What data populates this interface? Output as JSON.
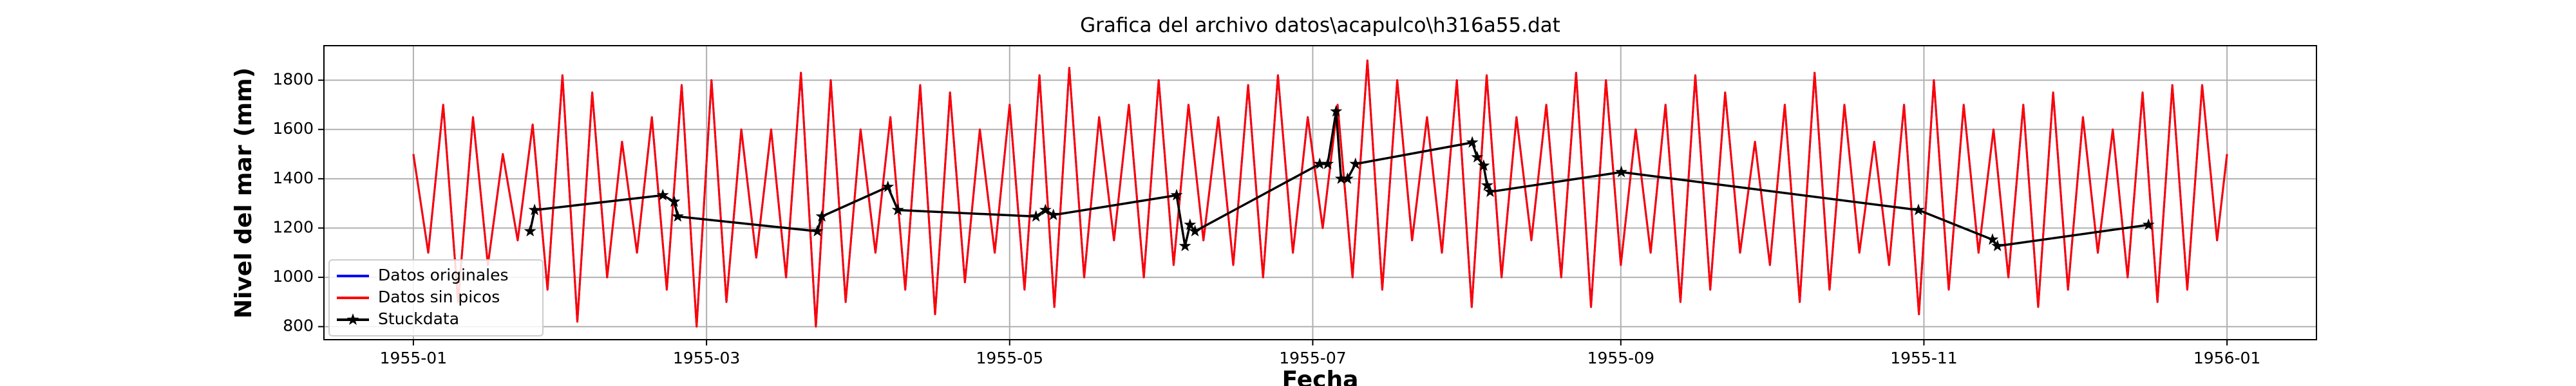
{
  "chart_data": {
    "type": "line",
    "title": "Grafica del archivo datos\\acapulco\\h316a55.dat",
    "xlabel": "Fecha",
    "ylabel": "Nivel del mar (mm)",
    "xlim": [
      -18,
      383
    ],
    "xticks": [
      {
        "value": 0,
        "label": "1955-01"
      },
      {
        "value": 59,
        "label": "1955-03"
      },
      {
        "value": 120,
        "label": "1955-05"
      },
      {
        "value": 181,
        "label": "1955-07"
      },
      {
        "value": 243,
        "label": "1955-09"
      },
      {
        "value": 304,
        "label": "1955-11"
      },
      {
        "value": 365,
        "label": "1956-01"
      }
    ],
    "ylim": [
      747,
      1940
    ],
    "yticks": [
      800,
      1000,
      1200,
      1400,
      1600,
      1800
    ],
    "grid": true,
    "legend": "lower left",
    "x": [
      0,
      3,
      6,
      9,
      12,
      15,
      18,
      21,
      24,
      27,
      30,
      33,
      36,
      39,
      42,
      45,
      48,
      51,
      54,
      57,
      60,
      63,
      66,
      69,
      72,
      75,
      78,
      81,
      84,
      87,
      90,
      93,
      96,
      99,
      102,
      105,
      108,
      111,
      114,
      117,
      120,
      123,
      126,
      129,
      132,
      135,
      138,
      141,
      144,
      147,
      150,
      153,
      156,
      159,
      162,
      165,
      168,
      171,
      174,
      177,
      180,
      183,
      186,
      189,
      192,
      195,
      198,
      201,
      204,
      207,
      210,
      213,
      216,
      219,
      222,
      225,
      228,
      231,
      234,
      237,
      240,
      243,
      246,
      249,
      252,
      255,
      258,
      261,
      264,
      267,
      270,
      273,
      276,
      279,
      282,
      285,
      288,
      291,
      294,
      297,
      300,
      303,
      306,
      309,
      312,
      315,
      318,
      321,
      324,
      327,
      330,
      333,
      336,
      339,
      342,
      345,
      348,
      351,
      354,
      357,
      360,
      363,
      365
    ],
    "series": [
      {
        "name": "Datos originales",
        "color": "#0000ff",
        "values": [
          1500,
          1100,
          1700,
          900,
          1650,
          1050,
          1500,
          1150,
          1620,
          950,
          1820,
          820,
          1750,
          1000,
          1550,
          1100,
          1650,
          950,
          1780,
          800,
          1800,
          900,
          1600,
          1080,
          1600,
          1000,
          1830,
          800,
          1800,
          900,
          1600,
          1100,
          1650,
          950,
          1780,
          850,
          1750,
          980,
          1600,
          1100,
          1700,
          950,
          1820,
          880,
          1850,
          1000,
          1650,
          1150,
          1700,
          1000,
          1800,
          1050,
          1700,
          1150,
          1650,
          1050,
          1780,
          1000,
          1820,
          1100,
          1650,
          1200,
          1700,
          1000,
          1880,
          950,
          1800,
          1150,
          1650,
          1100,
          1800,
          880,
          1820,
          1000,
          1650,
          1150,
          1700,
          1000,
          1830,
          880,
          1800,
          1050,
          1600,
          1100,
          1700,
          900,
          1820,
          950,
          1750,
          1100,
          1550,
          1050,
          1700,
          900,
          1830,
          950,
          1700,
          1100,
          1550,
          1050,
          1700,
          850,
          1800,
          950,
          1700,
          1100,
          1600,
          1000,
          1700,
          880,
          1750,
          950,
          1650,
          1100,
          1600,
          1000,
          1750,
          900,
          1780,
          950,
          1780,
          1150,
          1500
        ]
      },
      {
        "name": "Datos sin picos",
        "color": "#ff0000",
        "values": [
          1500,
          1100,
          1700,
          900,
          1650,
          1050,
          1500,
          1150,
          1620,
          950,
          1820,
          820,
          1750,
          1000,
          1550,
          1100,
          1650,
          950,
          1780,
          800,
          1800,
          900,
          1600,
          1080,
          1600,
          1000,
          1830,
          800,
          1800,
          900,
          1600,
          1100,
          1650,
          950,
          1780,
          850,
          1750,
          980,
          1600,
          1100,
          1700,
          950,
          1820,
          880,
          1850,
          1000,
          1650,
          1150,
          1700,
          1000,
          1800,
          1050,
          1700,
          1150,
          1650,
          1050,
          1780,
          1000,
          1820,
          1100,
          1650,
          1200,
          1700,
          1000,
          1880,
          950,
          1800,
          1150,
          1650,
          1100,
          1800,
          880,
          1820,
          1000,
          1650,
          1150,
          1700,
          1000,
          1830,
          880,
          1800,
          1050,
          1600,
          1100,
          1700,
          900,
          1820,
          950,
          1750,
          1100,
          1550,
          1050,
          1700,
          900,
          1830,
          950,
          1700,
          1100,
          1550,
          1050,
          1700,
          850,
          1800,
          950,
          1700,
          1100,
          1600,
          1000,
          1700,
          880,
          1750,
          950,
          1650,
          1100,
          1600,
          1000,
          1750,
          900,
          1780,
          950,
          1780,
          1150,
          1500
        ]
      },
      {
        "name": "Stuckdata",
        "color": "#000000",
        "marker": "star",
        "x": [
          23.5,
          24.4,
          50.2,
          52.5,
          53.2,
          81.3,
          82.2,
          95.5,
          97.5,
          125.3,
          127.2,
          128.8,
          153.6,
          155.3,
          156.3,
          157.3,
          182.4,
          184,
          185.7,
          186.7,
          188,
          189.6,
          213.1,
          214.1,
          215.4,
          216.1,
          216.7,
          243.1,
          302.9,
          317.8,
          318.8,
          349.2
        ],
        "values": [
          1187,
          1273,
          1333,
          1307,
          1247,
          1187,
          1247,
          1367,
          1273,
          1247,
          1273,
          1253,
          1333,
          1127,
          1213,
          1187,
          1460,
          1460,
          1673,
          1400,
          1400,
          1460,
          1547,
          1487,
          1453,
          1373,
          1347,
          1427,
          1273,
          1153,
          1127,
          1213
        ]
      }
    ]
  }
}
